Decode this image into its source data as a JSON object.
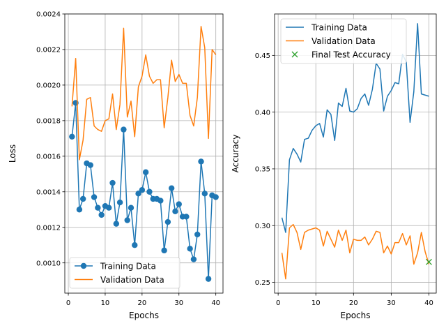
{
  "chart_data": [
    {
      "type": "line",
      "title": "",
      "xlabel": "Epochs",
      "ylabel": "Loss",
      "xlim": [
        -0.95,
        41.95
      ],
      "ylim": [
        0.00083,
        0.0024
      ],
      "xticks": [
        0,
        10,
        20,
        30,
        40
      ],
      "xtick_labels": [
        "0",
        "10",
        "20",
        "30",
        "40"
      ],
      "yticks": [
        0.001,
        0.0012,
        0.0014,
        0.0016,
        0.0018,
        0.002,
        0.0022,
        0.0024
      ],
      "ytick_labels": [
        "0.0010",
        "0.0012",
        "0.0014",
        "0.0016",
        "0.0018",
        "0.0020",
        "0.0022",
        "0.0024"
      ],
      "grid": true,
      "legend_position": "lower-left",
      "x": [
        1,
        2,
        3,
        4,
        5,
        6,
        7,
        8,
        9,
        10,
        11,
        12,
        13,
        14,
        15,
        16,
        17,
        18,
        19,
        20,
        21,
        22,
        23,
        24,
        25,
        26,
        27,
        28,
        29,
        30,
        31,
        32,
        33,
        34,
        35,
        36,
        37,
        38,
        39,
        40
      ],
      "series": [
        {
          "name": "Training Data",
          "color": "#1f77b4",
          "marker": "circle",
          "values": [
            0.00171,
            0.0019,
            0.0013,
            0.00136,
            0.00156,
            0.00155,
            0.00137,
            0.00131,
            0.00127,
            0.00132,
            0.00131,
            0.00145,
            0.00122,
            0.00134,
            0.00175,
            0.00124,
            0.00131,
            0.0011,
            0.00139,
            0.00141,
            0.00151,
            0.0014,
            0.00136,
            0.00136,
            0.00135,
            0.00107,
            0.00123,
            0.00142,
            0.00129,
            0.00133,
            0.00126,
            0.00126,
            0.00108,
            0.00102,
            0.00116,
            0.00157,
            0.00139,
            0.00091,
            0.00138,
            0.00137
          ]
        },
        {
          "name": "Validation Data",
          "color": "#ff7f0e",
          "marker": "none",
          "values": [
            0.00188,
            0.00215,
            0.00158,
            0.00169,
            0.00192,
            0.00193,
            0.00177,
            0.00175,
            0.00174,
            0.0018,
            0.00181,
            0.00195,
            0.00175,
            0.00189,
            0.00232,
            0.00182,
            0.00191,
            0.00171,
            0.00199,
            0.00205,
            0.00217,
            0.00205,
            0.00201,
            0.00203,
            0.00203,
            0.00176,
            0.00193,
            0.00214,
            0.00202,
            0.00206,
            0.00201,
            0.00201,
            0.00183,
            0.00177,
            0.00193,
            0.00233,
            0.00221,
            0.0017,
            0.0022,
            0.00217
          ]
        }
      ]
    },
    {
      "type": "line",
      "title": "",
      "xlabel": "Epochs",
      "ylabel": "Accuracy",
      "xlim": [
        -0.95,
        41.95
      ],
      "ylim": [
        0.2405,
        0.4865
      ],
      "xticks": [
        0,
        10,
        20,
        30,
        40
      ],
      "xtick_labels": [
        "0",
        "10",
        "20",
        "30",
        "40"
      ],
      "yticks": [
        0.25,
        0.3,
        0.35,
        0.4,
        0.45
      ],
      "ytick_labels": [
        "0.25",
        "0.30",
        "0.35",
        "0.40",
        "0.45"
      ],
      "grid": true,
      "legend_position": "upper-left",
      "x": [
        1,
        2,
        3,
        4,
        5,
        6,
        7,
        8,
        9,
        10,
        11,
        12,
        13,
        14,
        15,
        16,
        17,
        18,
        19,
        20,
        21,
        22,
        23,
        24,
        25,
        26,
        27,
        28,
        29,
        30,
        31,
        32,
        33,
        34,
        35,
        36,
        37,
        38,
        39,
        40
      ],
      "series": [
        {
          "name": "Training Data",
          "color": "#1f77b4",
          "marker": "none",
          "values": [
            0.307,
            0.294,
            0.358,
            0.368,
            0.363,
            0.356,
            0.376,
            0.377,
            0.384,
            0.388,
            0.39,
            0.378,
            0.402,
            0.398,
            0.375,
            0.408,
            0.405,
            0.421,
            0.401,
            0.4,
            0.403,
            0.412,
            0.416,
            0.406,
            0.42,
            0.443,
            0.438,
            0.401,
            0.414,
            0.419,
            0.426,
            0.425,
            0.451,
            0.444,
            0.391,
            0.418,
            0.478,
            0.416,
            0.415,
            0.414
          ]
        },
        {
          "name": "Validation Data",
          "color": "#ff7f0e",
          "marker": "none",
          "values": [
            0.276,
            0.253,
            0.298,
            0.301,
            0.294,
            0.279,
            0.294,
            0.296,
            0.297,
            0.298,
            0.296,
            0.282,
            0.295,
            0.288,
            0.281,
            0.296,
            0.287,
            0.296,
            0.276,
            0.288,
            0.287,
            0.287,
            0.29,
            0.283,
            0.288,
            0.295,
            0.294,
            0.276,
            0.282,
            0.275,
            0.285,
            0.285,
            0.293,
            0.283,
            0.291,
            0.266,
            0.276,
            0.294,
            0.277,
            0.266
          ]
        },
        {
          "name": "Final Test Accuracy",
          "color": "#2ca02c",
          "marker": "x",
          "points": [
            [
              40,
              0.268
            ]
          ]
        }
      ]
    }
  ]
}
